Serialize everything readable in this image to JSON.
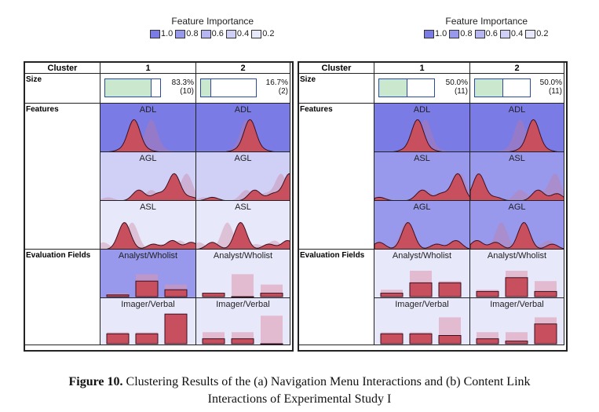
{
  "legend": {
    "title": "Feature Importance",
    "items": [
      {
        "label": "1.0",
        "color": "#7b7be6"
      },
      {
        "label": "0.8",
        "color": "#9898ec"
      },
      {
        "label": "0.6",
        "color": "#b6b6f2"
      },
      {
        "label": "0.4",
        "color": "#d0d0f6"
      },
      {
        "label": "0.2",
        "color": "#e8e8fb"
      }
    ]
  },
  "headers": {
    "cluster": "Cluster",
    "c1": "1",
    "c2": "2"
  },
  "row_labels": {
    "size": "Size",
    "features": "Features",
    "eval": "Evaluation Fields"
  },
  "panels": [
    {
      "size": [
        {
          "pct_text": "83.3%",
          "count_text": "(10)",
          "fraction": 0.833
        },
        {
          "pct_text": "16.7%",
          "count_text": "(2)",
          "fraction": 0.167
        }
      ],
      "features": [
        {
          "name": "ADL",
          "importance": [
            1.0,
            1.0
          ]
        },
        {
          "name": "AGL",
          "importance": [
            0.4,
            0.4
          ]
        },
        {
          "name": "ASL",
          "importance": [
            0.2,
            0.2
          ]
        }
      ],
      "evals": [
        {
          "name": "Analyst/Wholist",
          "importance": [
            0.8,
            0.2
          ],
          "bars": [
            [
              0.05,
              0.45,
              0.2
            ],
            [
              0.1,
              0.0,
              0.1
            ]
          ],
          "overall": [
            0.1,
            0.65,
            0.35
          ]
        },
        {
          "name": "Imager/Verbal",
          "importance": [
            0.2,
            0.2
          ],
          "bars": [
            [
              0.3,
              0.3,
              0.9
            ],
            [
              0.15,
              0.15,
              0.0
            ]
          ],
          "overall": [
            0.35,
            0.35,
            0.85
          ]
        }
      ]
    },
    {
      "size": [
        {
          "pct_text": "50.0%",
          "count_text": "(11)",
          "fraction": 0.5
        },
        {
          "pct_text": "50.0%",
          "count_text": "(11)",
          "fraction": 0.5
        }
      ],
      "features": [
        {
          "name": "ADL",
          "importance": [
            1.0,
            1.0
          ]
        },
        {
          "name": "ASL",
          "importance": [
            0.8,
            0.8
          ]
        },
        {
          "name": "AGL",
          "importance": [
            0.8,
            0.8
          ]
        }
      ],
      "evals": [
        {
          "name": "Analyst/Wholist",
          "importance": [
            0.2,
            0.2
          ],
          "bars": [
            [
              0.1,
              0.4,
              0.4
            ],
            [
              0.15,
              0.55,
              0.15
            ]
          ],
          "overall": [
            0.2,
            0.75,
            0.45
          ]
        },
        {
          "name": "Imager/Verbal",
          "importance": [
            0.2,
            0.2
          ],
          "bars": [
            [
              0.3,
              0.3,
              0.25
            ],
            [
              0.15,
              0.08,
              0.6
            ]
          ],
          "overall": [
            0.35,
            0.35,
            0.8
          ]
        }
      ]
    }
  ],
  "caption": {
    "label": "Figure 10.",
    "line1": " Clustering Results of the (a) Navigation Menu Interactions and (b) Content Link",
    "line2": "Interactions of Experimental Study I"
  }
}
